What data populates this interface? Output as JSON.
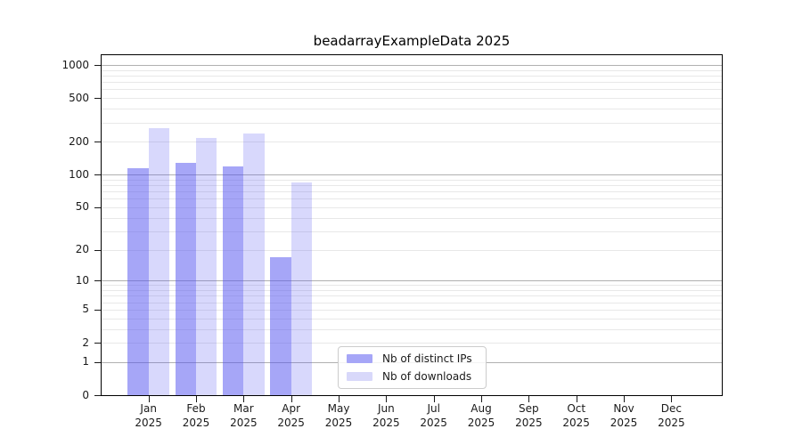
{
  "title": "beadarrayExampleData 2025",
  "chart_data": {
    "type": "bar",
    "title": "beadarrayExampleData 2025",
    "scale": "log1p",
    "categories": [
      "Jan",
      "Feb",
      "Mar",
      "Apr",
      "May",
      "Jun",
      "Jul",
      "Aug",
      "Sep",
      "Oct",
      "Nov",
      "Dec"
    ],
    "x_year": "2025",
    "series": [
      {
        "name": "Nb of distinct IPs",
        "color": "rgba(77,77,240,0.5)",
        "legend_color": "#a6a6f7",
        "values": [
          115,
          128,
          120,
          17,
          0,
          0,
          0,
          0,
          0,
          0,
          0,
          0
        ]
      },
      {
        "name": "Nb of downloads",
        "color": "rgba(77,77,240,0.22)",
        "legend_color": "#d8d8fa",
        "values": [
          265,
          215,
          240,
          85,
          0,
          0,
          0,
          0,
          0,
          0,
          0,
          0
        ]
      }
    ],
    "y_axis": {
      "ticks": [
        0,
        1,
        2,
        5,
        10,
        20,
        50,
        100,
        200,
        500,
        1000
      ],
      "ylim": [
        0,
        1230
      ],
      "major_gridlines": [
        1,
        10,
        100,
        1000
      ],
      "minor_gridlines": [
        2,
        3,
        4,
        5,
        6,
        7,
        8,
        9,
        20,
        30,
        40,
        50,
        60,
        70,
        80,
        90,
        200,
        300,
        400,
        500,
        600,
        700,
        800,
        900
      ]
    },
    "grid": true,
    "legend_position": "lower center"
  },
  "colors": {
    "major_grid": "#b0b0b0",
    "minor_grid": "#e8e8e8",
    "axis": "#000000",
    "text": "#1a1a1a"
  }
}
